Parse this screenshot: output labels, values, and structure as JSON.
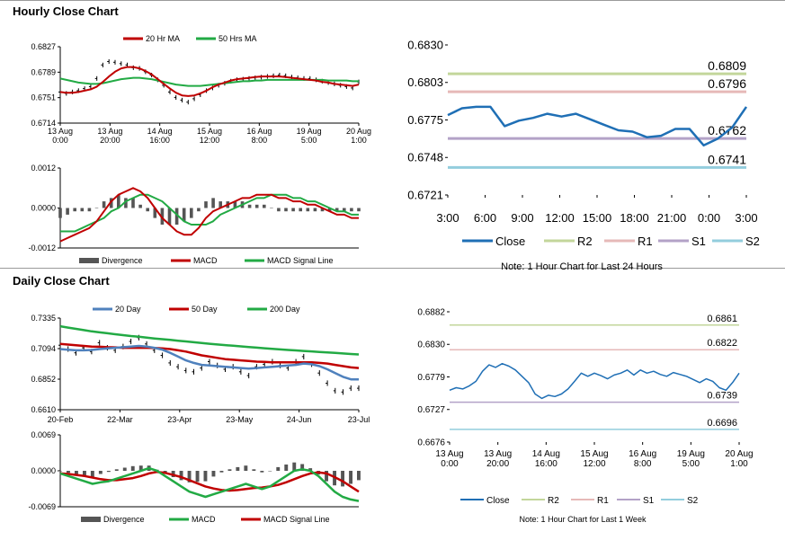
{
  "sections": {
    "hourly_title": "Hourly Close Chart",
    "daily_title": "Daily Close Chart"
  },
  "colors": {
    "ma_red": "#c00000",
    "ma_green": "#22aa44",
    "blue": "#4f81bd",
    "close_blue": "#1f6fb5",
    "r2": "#c3d69b",
    "r1": "#e6b9b8",
    "s1": "#b3a2c7",
    "s2": "#93cddd",
    "hist": "#555555"
  },
  "chart_data": [
    {
      "id": "hourly-price",
      "type": "line",
      "title": "",
      "ylim": [
        0.6714,
        0.6827
      ],
      "y_ticks": [
        "0.6827",
        "0.6789",
        "0.6751",
        "0.6714"
      ],
      "x_ticks": [
        "13 Aug\n0:00",
        "13 Aug\n20:00",
        "14 Aug\n16:00",
        "15 Aug\n12:00",
        "16 Aug\n8:00",
        "19 Aug\n5:00",
        "20 Aug\n1:00"
      ],
      "legend": [
        "20 Hr MA",
        "50 Hrs MA"
      ],
      "series": [
        {
          "name": "Close",
          "values": [
            0.676,
            0.6758,
            0.676,
            0.6762,
            0.6765,
            0.6768,
            0.678,
            0.68,
            0.6805,
            0.6804,
            0.6802,
            0.68,
            0.6796,
            0.6795,
            0.679,
            0.6785,
            0.6778,
            0.677,
            0.676,
            0.6752,
            0.6748,
            0.6745,
            0.675,
            0.6756,
            0.6762,
            0.6766,
            0.677,
            0.6773,
            0.6776,
            0.6778,
            0.6779,
            0.678,
            0.6781,
            0.6782,
            0.6783,
            0.6784,
            0.6785,
            0.6784,
            0.6782,
            0.6781,
            0.678,
            0.678,
            0.6778,
            0.6776,
            0.6774,
            0.6772,
            0.677,
            0.6768,
            0.6766,
            0.6775
          ]
        },
        {
          "name": "20 Hr MA",
          "values": [
            0.676,
            0.6759,
            0.6759,
            0.676,
            0.6762,
            0.6764,
            0.6768,
            0.6775,
            0.6783,
            0.679,
            0.6795,
            0.6797,
            0.6797,
            0.6795,
            0.6791,
            0.6786,
            0.6779,
            0.6772,
            0.6765,
            0.6759,
            0.6755,
            0.6754,
            0.6755,
            0.6758,
            0.6762,
            0.6767,
            0.6771,
            0.6774,
            0.6777,
            0.6779,
            0.678,
            0.6781,
            0.6782,
            0.6783,
            0.6783,
            0.6783,
            0.6783,
            0.6782,
            0.6781,
            0.678,
            0.6779,
            0.6778,
            0.6777,
            0.6775,
            0.6774,
            0.6772,
            0.6771,
            0.677,
            0.6769,
            0.6771
          ]
        },
        {
          "name": "50 Hrs MA",
          "values": [
            0.678,
            0.6778,
            0.6776,
            0.6774,
            0.6773,
            0.6772,
            0.6772,
            0.6773,
            0.6775,
            0.6777,
            0.6779,
            0.678,
            0.6781,
            0.6781,
            0.678,
            0.6779,
            0.6777,
            0.6775,
            0.6773,
            0.6771,
            0.677,
            0.6769,
            0.6769,
            0.6769,
            0.677,
            0.6771,
            0.6772,
            0.6773,
            0.6774,
            0.6775,
            0.6776,
            0.6776,
            0.6777,
            0.6777,
            0.6778,
            0.6778,
            0.6778,
            0.6778,
            0.6778,
            0.6778,
            0.6778,
            0.6778,
            0.6778,
            0.6778,
            0.6777,
            0.6777,
            0.6777,
            0.6777,
            0.6776,
            0.6776
          ]
        }
      ]
    },
    {
      "id": "hourly-macd",
      "type": "line",
      "ylim": [
        -0.0012,
        0.0012
      ],
      "y_ticks": [
        "0.0012",
        "0.0000",
        "-0.0012"
      ],
      "legend": [
        "Divergence",
        "MACD",
        "MACD Signal Line"
      ],
      "series": [
        {
          "name": "MACD",
          "values": [
            -0.001,
            -0.0009,
            -0.0008,
            -0.0007,
            -0.0006,
            -0.0004,
            -0.0001,
            0.0002,
            0.0004,
            0.0005,
            0.0006,
            0.0005,
            0.0003,
            0.0,
            -0.0003,
            -0.0005,
            -0.0007,
            -0.0008,
            -0.0008,
            -0.0006,
            -0.0003,
            -0.0001,
            0.0,
            0.0001,
            0.0002,
            0.0003,
            0.0003,
            0.0004,
            0.0004,
            0.0004,
            0.0003,
            0.0003,
            0.0002,
            0.0002,
            0.0001,
            0.0001,
            0.0,
            -0.0001,
            -0.0002,
            -0.0002,
            -0.0003,
            -0.0003
          ]
        },
        {
          "name": "MACD Signal Line",
          "values": [
            -0.0007,
            -0.0007,
            -0.0007,
            -0.0006,
            -0.0005,
            -0.0004,
            -0.0003,
            -0.0001,
            0.0,
            0.0002,
            0.0003,
            0.0004,
            0.0004,
            0.0003,
            0.0002,
            0.0,
            -0.0002,
            -0.0004,
            -0.0005,
            -0.0005,
            -0.0005,
            -0.0004,
            -0.0002,
            -0.0001,
            0.0,
            0.0001,
            0.0002,
            0.0003,
            0.0003,
            0.0004,
            0.0004,
            0.0004,
            0.0003,
            0.0003,
            0.0002,
            0.0002,
            0.0001,
            0.0,
            -0.0001,
            -0.0001,
            -0.0002,
            -0.0002
          ]
        },
        {
          "name": "Divergence",
          "values": [
            -0.0003,
            -0.0002,
            -0.0001,
            -0.0001,
            -0.0001,
            0.0,
            0.0002,
            0.0003,
            0.0004,
            0.0003,
            0.0003,
            0.0001,
            -0.0001,
            -0.0003,
            -0.0005,
            -0.0005,
            -0.0005,
            -0.0004,
            -0.0003,
            -0.0001,
            0.0002,
            0.0003,
            0.0002,
            0.0002,
            0.0002,
            0.0002,
            0.0001,
            0.0001,
            0.0001,
            0.0,
            -0.0001,
            -0.0001,
            -0.0001,
            -0.0001,
            -0.0001,
            -0.0001,
            -0.0001,
            -0.0001,
            -0.0001,
            -0.0001,
            -0.0001,
            -0.0001
          ]
        }
      ]
    },
    {
      "id": "hourly-levels",
      "type": "line",
      "ylim": [
        0.6721,
        0.683
      ],
      "y_ticks": [
        "0.6830",
        "0.6803",
        "0.6775",
        "0.6748",
        "0.6721"
      ],
      "x_ticks": [
        "3:00",
        "6:00",
        "9:00",
        "12:00",
        "15:00",
        "18:00",
        "21:00",
        "0:00",
        "3:00"
      ],
      "legend": [
        "Close",
        "R2",
        "R1",
        "S1",
        "S2"
      ],
      "levels": [
        {
          "name": "R2",
          "value": 0.6809,
          "label": "0.6809"
        },
        {
          "name": "R1",
          "value": 0.6796,
          "label": "0.6796"
        },
        {
          "name": "S1",
          "value": 0.6762,
          "label": "0.6762"
        },
        {
          "name": "S2",
          "value": 0.6741,
          "label": "0.6741"
        }
      ],
      "series": [
        {
          "name": "Close",
          "values": [
            0.6779,
            0.6784,
            0.6785,
            0.6785,
            0.6771,
            0.6775,
            0.6777,
            0.678,
            0.6778,
            0.678,
            0.6776,
            0.6772,
            0.6768,
            0.6767,
            0.6763,
            0.6764,
            0.6769,
            0.6769,
            0.6757,
            0.6762,
            0.677,
            0.6785
          ]
        }
      ],
      "note": "Note: 1 Hour Chart for Last 24 Hours"
    },
    {
      "id": "daily-price",
      "type": "line",
      "ylim": [
        0.661,
        0.7335
      ],
      "y_ticks": [
        "0.7335",
        "0.7094",
        "0.6852",
        "0.6610"
      ],
      "x_ticks": [
        "20-Feb",
        "22-Mar",
        "23-Apr",
        "23-May",
        "24-Jun",
        "23-Jul"
      ],
      "legend": [
        "20 Day",
        "50 Day",
        "200 Day"
      ],
      "series": [
        {
          "name": "Close",
          "values": [
            0.712,
            0.709,
            0.706,
            0.71,
            0.707,
            0.714,
            0.71,
            0.708,
            0.711,
            0.715,
            0.718,
            0.713,
            0.708,
            0.704,
            0.698,
            0.695,
            0.692,
            0.691,
            0.694,
            0.699,
            0.696,
            0.693,
            0.695,
            0.691,
            0.688,
            0.695,
            0.697,
            0.699,
            0.696,
            0.694,
            0.699,
            0.703,
            0.697,
            0.69,
            0.682,
            0.676,
            0.675,
            0.678,
            0.678
          ]
        },
        {
          "name": "20 Day",
          "values": [
            0.709,
            0.7085,
            0.708,
            0.708,
            0.7083,
            0.709,
            0.7095,
            0.71,
            0.7105,
            0.711,
            0.7115,
            0.711,
            0.71,
            0.7085,
            0.706,
            0.703,
            0.7,
            0.698,
            0.6965,
            0.696,
            0.6955,
            0.695,
            0.6945,
            0.694,
            0.6935,
            0.694,
            0.6945,
            0.695,
            0.6955,
            0.696,
            0.6965,
            0.6975,
            0.697,
            0.6955,
            0.693,
            0.69,
            0.687,
            0.685,
            0.685
          ]
        },
        {
          "name": "50 Day",
          "values": [
            0.713,
            0.7125,
            0.712,
            0.7115,
            0.711,
            0.7108,
            0.7105,
            0.7103,
            0.71,
            0.71,
            0.71,
            0.71,
            0.7098,
            0.7095,
            0.709,
            0.708,
            0.707,
            0.7055,
            0.704,
            0.703,
            0.702,
            0.701,
            0.7005,
            0.7,
            0.6995,
            0.699,
            0.6988,
            0.6985,
            0.6985,
            0.6985,
            0.6985,
            0.6985,
            0.6985,
            0.698,
            0.6975,
            0.6965,
            0.6955,
            0.6945,
            0.694
          ]
        },
        {
          "name": "200 Day",
          "values": [
            0.727,
            0.726,
            0.725,
            0.724,
            0.723,
            0.7222,
            0.7215,
            0.7207,
            0.72,
            0.7193,
            0.7187,
            0.718,
            0.7174,
            0.7168,
            0.7162,
            0.7156,
            0.715,
            0.7144,
            0.7138,
            0.7132,
            0.7126,
            0.7121,
            0.7116,
            0.7111,
            0.7106,
            0.7101,
            0.7096,
            0.7091,
            0.7087,
            0.7083,
            0.7079,
            0.7075,
            0.7071,
            0.7067,
            0.7063,
            0.7059,
            0.7055,
            0.7051,
            0.7047
          ]
        }
      ]
    },
    {
      "id": "daily-macd",
      "type": "line",
      "ylim": [
        -0.0069,
        0.0069
      ],
      "y_ticks": [
        "0.0069",
        "0.0000",
        "-0.0069"
      ],
      "legend": [
        "Divergence",
        "MACD",
        "MACD Signal Line"
      ],
      "series": [
        {
          "name": "MACD",
          "values": [
            -0.0005,
            -0.001,
            -0.0015,
            -0.002,
            -0.0025,
            -0.0022,
            -0.002,
            -0.0015,
            -0.001,
            -0.0005,
            0.0,
            0.0005,
            0.0,
            -0.001,
            -0.002,
            -0.003,
            -0.004,
            -0.0045,
            -0.005,
            -0.0045,
            -0.004,
            -0.0035,
            -0.003,
            -0.0025,
            -0.003,
            -0.0035,
            -0.003,
            -0.002,
            -0.001,
            0.0,
            0.0003,
            0.0,
            -0.001,
            -0.0025,
            -0.004,
            -0.005,
            -0.0055,
            -0.0058
          ]
        },
        {
          "name": "MACD Signal Line",
          "values": [
            -0.0005,
            -0.0006,
            -0.0008,
            -0.001,
            -0.0013,
            -0.0016,
            -0.0018,
            -0.0018,
            -0.0016,
            -0.0014,
            -0.001,
            -0.0005,
            -0.0002,
            -0.0004,
            -0.0008,
            -0.0012,
            -0.0018,
            -0.0024,
            -0.003,
            -0.0034,
            -0.0037,
            -0.0038,
            -0.0037,
            -0.0035,
            -0.0033,
            -0.0032,
            -0.003,
            -0.0027,
            -0.0022,
            -0.0016,
            -0.001,
            -0.0005,
            -0.0003,
            -0.0005,
            -0.0012,
            -0.002,
            -0.003,
            -0.004
          ]
        },
        {
          "name": "Divergence",
          "values": [
            0.0,
            -0.0004,
            -0.0007,
            -0.001,
            -0.0012,
            -0.0006,
            -0.0002,
            0.0003,
            0.0006,
            0.0009,
            0.001,
            0.001,
            0.0002,
            -0.0006,
            -0.0012,
            -0.0018,
            -0.0022,
            -0.0021,
            -0.002,
            -0.0011,
            -0.0003,
            0.0003,
            0.0007,
            0.001,
            0.0003,
            -0.0003,
            0.0,
            0.0007,
            0.0012,
            0.0016,
            0.0013,
            0.0005,
            -0.0007,
            -0.002,
            -0.0028,
            -0.003,
            -0.0025,
            -0.0018
          ]
        }
      ]
    },
    {
      "id": "weekly-levels",
      "type": "line",
      "ylim": [
        0.6676,
        0.6882
      ],
      "y_ticks": [
        "0.6882",
        "0.6830",
        "0.6779",
        "0.6727",
        "0.6676"
      ],
      "x_ticks": [
        "13 Aug\n0:00",
        "13 Aug\n20:00",
        "14 Aug\n16:00",
        "15 Aug\n12:00",
        "16 Aug\n8:00",
        "19 Aug\n5:00",
        "20 Aug\n1:00"
      ],
      "legend": [
        "Close",
        "R2",
        "R1",
        "S1",
        "S2"
      ],
      "levels": [
        {
          "name": "R2",
          "value": 0.6861,
          "label": "0.6861"
        },
        {
          "name": "R1",
          "value": 0.6822,
          "label": "0.6822"
        },
        {
          "name": "S1",
          "value": 0.6739,
          "label": "0.6739"
        },
        {
          "name": "S2",
          "value": 0.6696,
          "label": "0.6696"
        }
      ],
      "series": [
        {
          "name": "Close",
          "values": [
            0.6758,
            0.6762,
            0.676,
            0.6765,
            0.6772,
            0.6788,
            0.6798,
            0.6794,
            0.68,
            0.6796,
            0.679,
            0.678,
            0.677,
            0.6752,
            0.6745,
            0.675,
            0.6748,
            0.6752,
            0.676,
            0.6772,
            0.6785,
            0.678,
            0.6785,
            0.6781,
            0.6776,
            0.6782,
            0.6785,
            0.679,
            0.6782,
            0.679,
            0.6785,
            0.6788,
            0.6783,
            0.678,
            0.6786,
            0.6783,
            0.678,
            0.6775,
            0.677,
            0.6776,
            0.6772,
            0.6762,
            0.6758,
            0.677,
            0.6785
          ]
        }
      ],
      "note": "Note: 1 Hour Chart for Last 1 Week"
    }
  ]
}
